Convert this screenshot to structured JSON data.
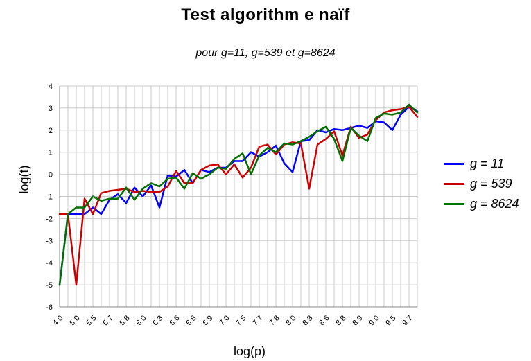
{
  "chart_data": {
    "type": "line",
    "title": "Test algorithm e naïf",
    "subtitle": "pour g=11, g=539 et g=8624",
    "xlabel": "log(p)",
    "ylabel": "log(t)",
    "ylim": [
      -6,
      4
    ],
    "yticks": [
      -6,
      -5,
      -4,
      -3,
      -2,
      -1,
      0,
      1,
      2,
      3,
      4
    ],
    "grid": true,
    "legend_position": "right",
    "x_tick_labels": [
      "4.0",
      "5.0",
      "5.5",
      "5.7",
      "5.8",
      "6.0",
      "6.3",
      "6.6",
      "6.8",
      "6.9",
      "7.0",
      "7.5",
      "7.7",
      "7.8",
      "8.0",
      "8.3",
      "8.6",
      "8.8",
      "8.9",
      "9.0",
      "9.5",
      "9.7"
    ],
    "n_points": 44,
    "series": [
      {
        "name": "g = 11",
        "color": "#0000ff",
        "values": [
          -5.0,
          -1.8,
          -1.8,
          -1.8,
          -1.5,
          -1.8,
          -1.15,
          -0.9,
          -1.3,
          -0.6,
          -1.0,
          -0.5,
          -1.5,
          -0.05,
          -0.1,
          0.2,
          -0.4,
          0.2,
          0.1,
          0.3,
          0.3,
          0.6,
          0.6,
          1.0,
          0.8,
          1.0,
          1.3,
          0.5,
          0.1,
          1.5,
          1.55,
          2.0,
          1.9,
          2.05,
          2.0,
          2.1,
          2.2,
          2.1,
          2.4,
          2.35,
          2.0,
          2.7,
          3.05,
          2.85
        ]
      },
      {
        "name": "g = 539",
        "color": "#cc0000",
        "values": [
          -1.8,
          -1.8,
          -5.0,
          -1.1,
          -1.8,
          -0.85,
          -0.75,
          -0.7,
          -0.65,
          -0.8,
          -0.75,
          -0.8,
          -0.8,
          -0.55,
          0.15,
          -0.4,
          -0.4,
          0.2,
          0.4,
          0.45,
          0.0,
          0.45,
          -0.15,
          0.3,
          1.25,
          1.35,
          0.9,
          1.35,
          1.45,
          1.4,
          -0.65,
          1.35,
          1.6,
          1.95,
          0.85,
          2.15,
          1.65,
          1.8,
          2.45,
          2.8,
          2.9,
          2.95,
          3.05,
          2.6
        ]
      },
      {
        "name": "g = 8624",
        "color": "#007000",
        "values": [
          -5.0,
          -1.8,
          -1.5,
          -1.5,
          -1.0,
          -1.2,
          -1.1,
          -1.1,
          -0.6,
          -1.15,
          -0.65,
          -0.4,
          -0.55,
          -0.2,
          -0.15,
          -0.65,
          0.05,
          -0.2,
          0.0,
          0.3,
          0.25,
          0.7,
          0.95,
          0.0,
          0.85,
          1.2,
          1.0,
          1.4,
          1.35,
          1.5,
          1.7,
          1.95,
          2.15,
          1.6,
          0.6,
          2.1,
          1.75,
          1.5,
          2.55,
          2.75,
          2.7,
          2.8,
          3.15,
          2.8
        ]
      }
    ]
  }
}
